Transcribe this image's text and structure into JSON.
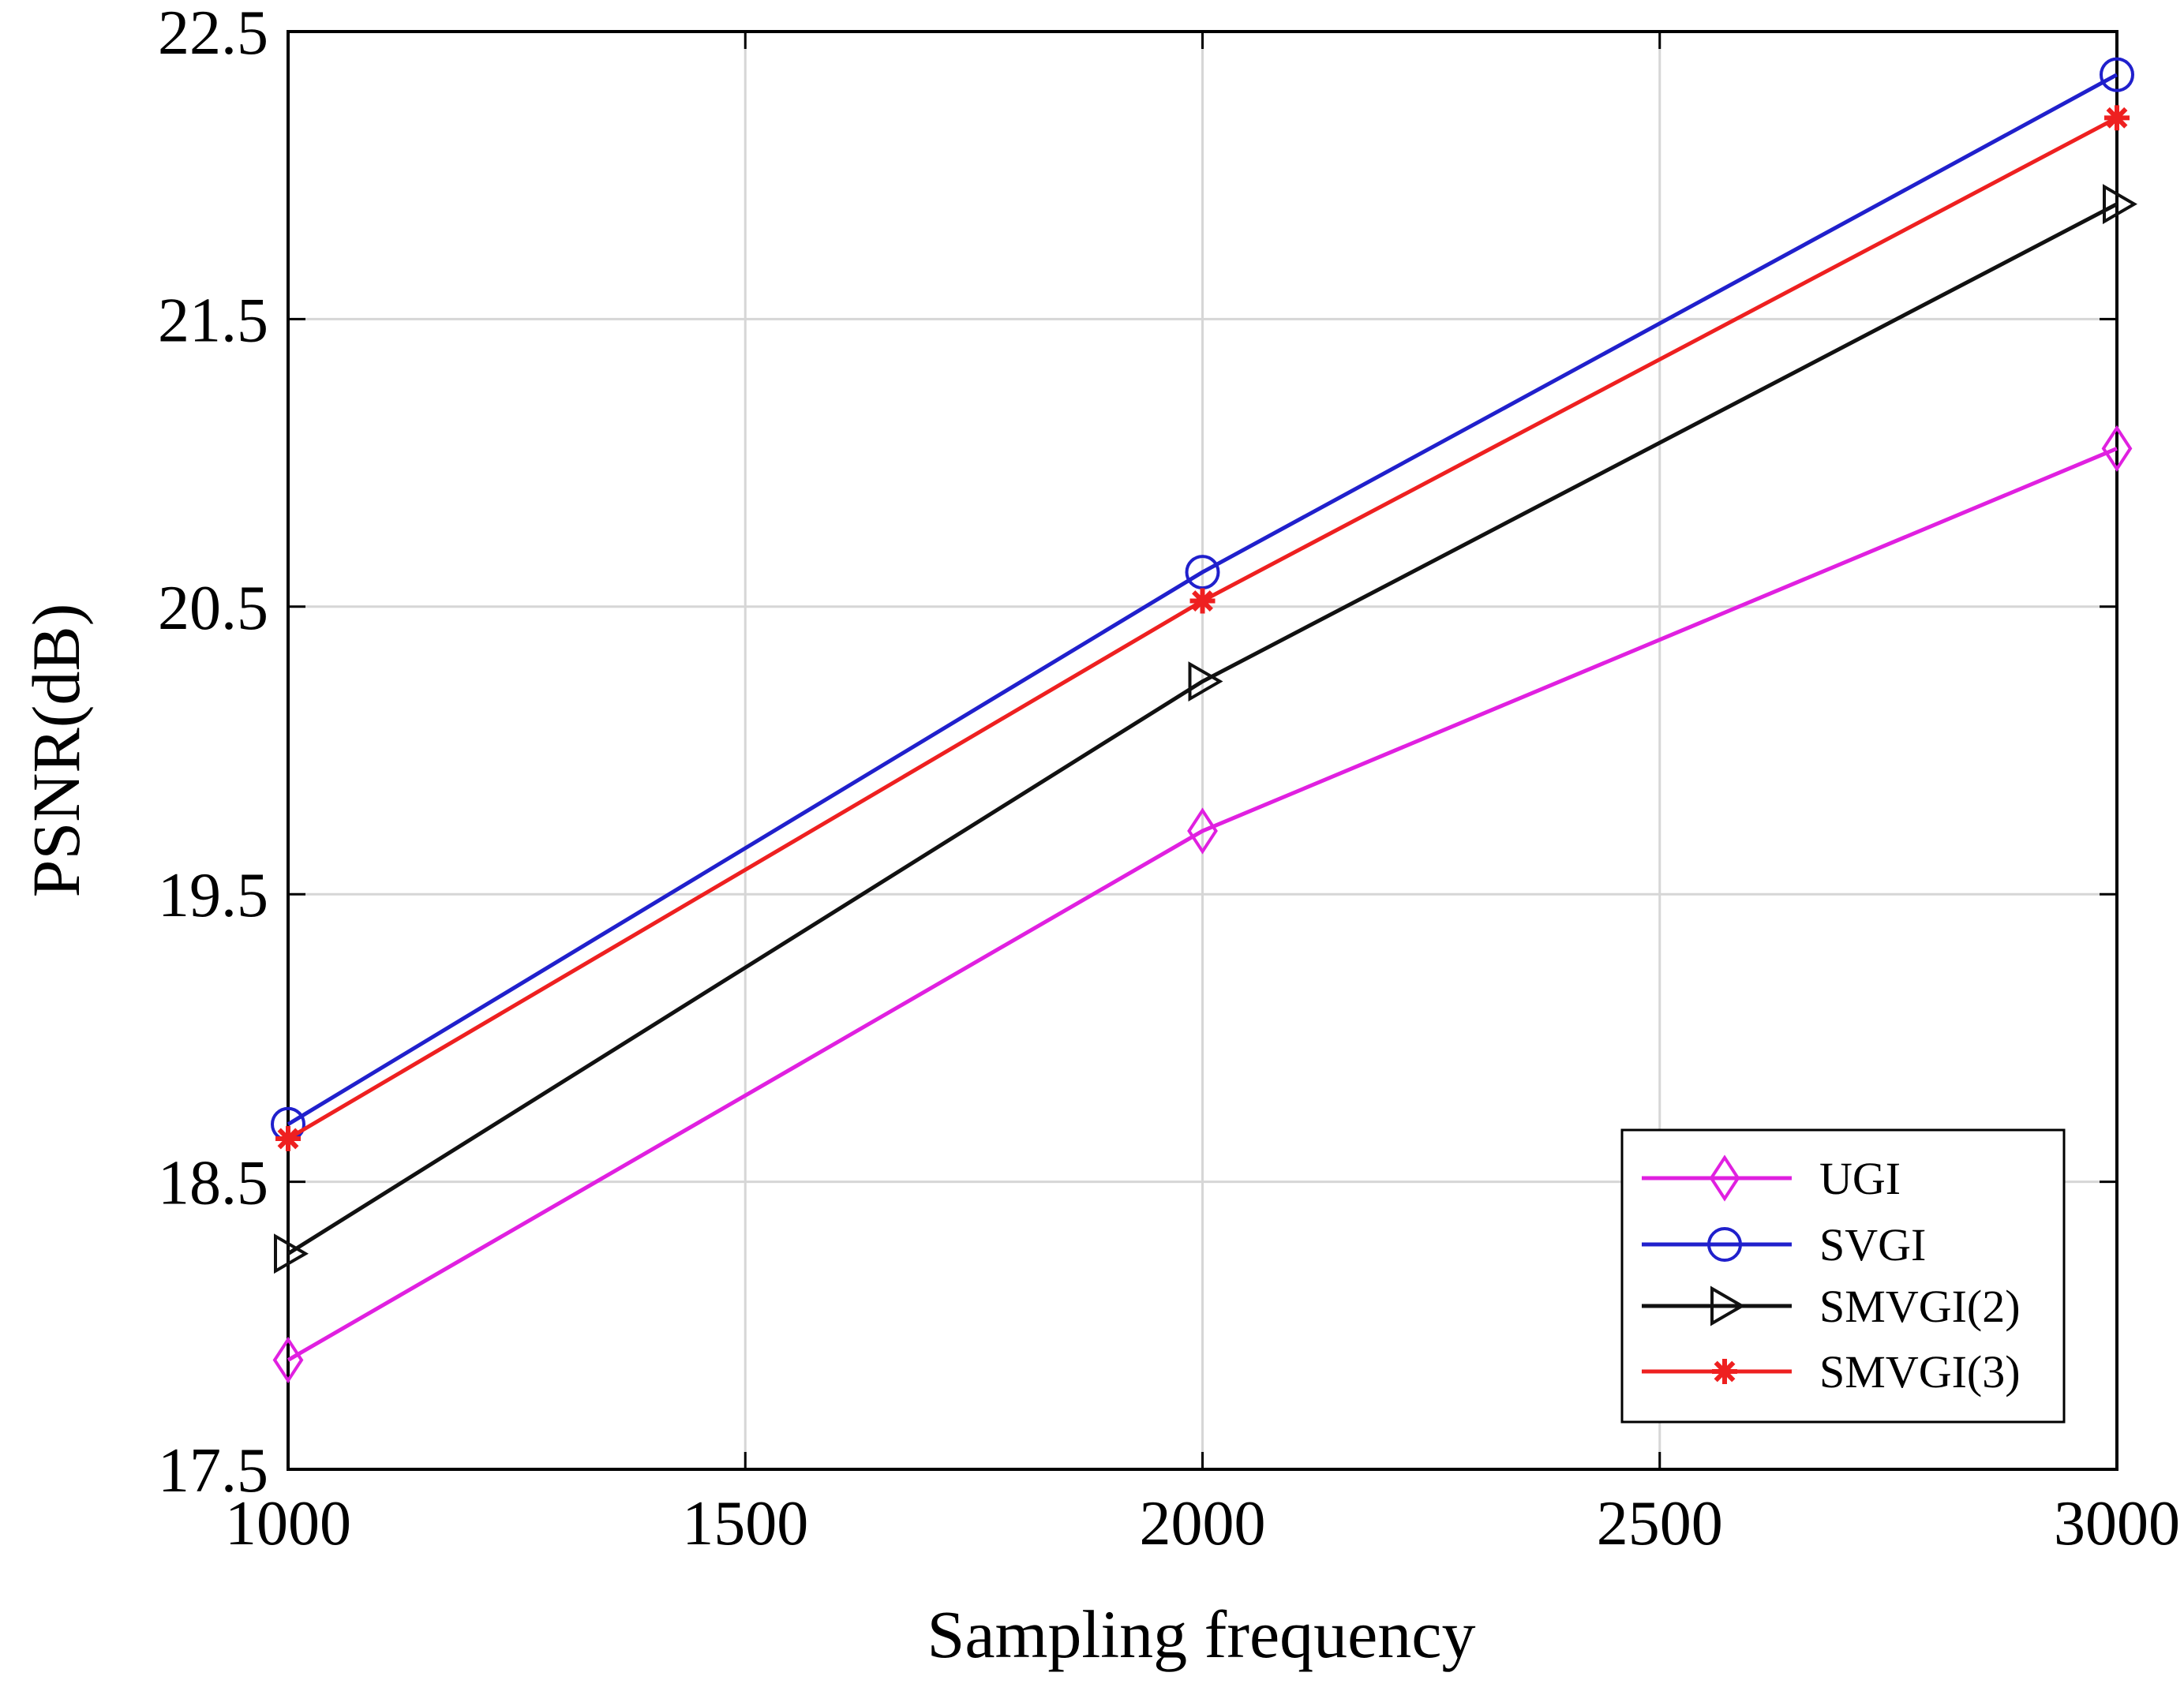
{
  "chart_data": {
    "type": "line",
    "title": "",
    "xlabel": "Sampling frequency",
    "ylabel": "PSNR(dB)",
    "x": [
      1000,
      2000,
      3000
    ],
    "xlim": [
      1000,
      3000
    ],
    "ylim": [
      17.5,
      22.5
    ],
    "xticks": [
      1000,
      1500,
      2000,
      2500,
      3000
    ],
    "yticks": [
      17.5,
      18.5,
      19.5,
      20.5,
      21.5,
      22.5
    ],
    "xtick_labels": [
      "1000",
      "1500",
      "2000",
      "2500",
      "3000"
    ],
    "ytick_labels": [
      "17.5",
      "18.5",
      "19.5",
      "20.5",
      "21.5",
      "22.5"
    ],
    "grid": true,
    "legend_position": "bottom-right",
    "series": [
      {
        "name": "UGI",
        "values": [
          17.88,
          19.72,
          21.05
        ],
        "color": "#e020e0",
        "marker": "diamond"
      },
      {
        "name": "SVGI",
        "values": [
          18.7,
          20.62,
          22.35
        ],
        "color": "#2020cc",
        "marker": "circle"
      },
      {
        "name": "SMVGI(2)",
        "values": [
          18.25,
          20.24,
          21.9
        ],
        "color": "#111111",
        "marker": "triangle-right"
      },
      {
        "name": "SMVGI(3)",
        "values": [
          18.65,
          20.52,
          22.2
        ],
        "color": "#ee2020",
        "marker": "star"
      }
    ]
  }
}
